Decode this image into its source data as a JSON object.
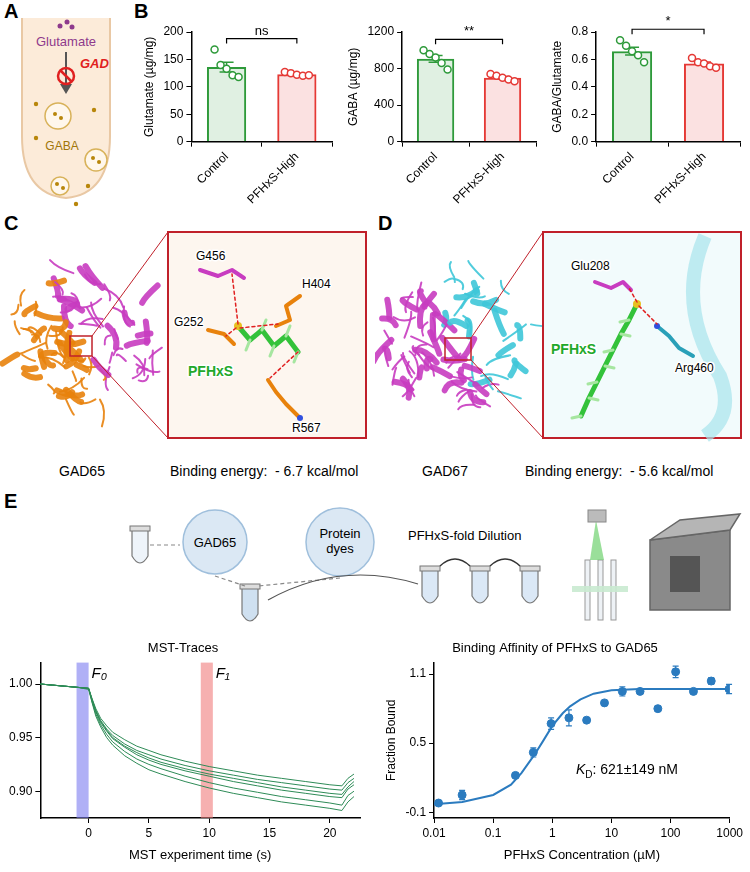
{
  "panel_letters": [
    "A",
    "B",
    "C",
    "D",
    "E"
  ],
  "diagrams": {
    "A": {
      "substrate": "Glutamate",
      "enzyme": "GAD",
      "product": "GABA"
    },
    "C": {
      "protein": "GAD65",
      "residues": [
        "G456",
        "H404",
        "G252",
        "R567"
      ],
      "ligand": "PFHxS",
      "binding_energy": "Binding energy:  - 6.7 kcal/mol"
    },
    "D": {
      "protein": "GAD67",
      "residues": [
        "Glu208",
        "Arg460"
      ],
      "ligand": "PFHxS",
      "binding_energy": "Binding energy:  - 5.6 kcal/mol"
    },
    "E": {
      "steps": [
        "GAD65",
        "Protein dyes",
        "PFHxS-fold Dilution"
      ]
    }
  },
  "chart_data": [
    {
      "type": "bar",
      "ylabel": "Glutamate (µg/mg)",
      "categories": [
        "Control",
        "PFHxS-High"
      ],
      "values": [
        136,
        123
      ],
      "errors": [
        8.9,
        1.3
      ],
      "points": [
        [
          168,
          140,
          133,
          121,
          118
        ],
        [
          127,
          125,
          122,
          120,
          121
        ]
      ],
      "colors": [
        "#2e9a3a",
        "#e53935"
      ],
      "significance": "ns",
      "ylim": [
        0,
        200
      ],
      "yticks": [
        0,
        50,
        100,
        150,
        200
      ],
      "grid": false
    },
    {
      "type": "bar",
      "ylabel": "GABA (µg/mg)",
      "categories": [
        "Control",
        "PFHxS-High"
      ],
      "values": [
        906,
        700
      ],
      "errors": [
        37,
        14
      ],
      "points": [
        [
          1000,
          960,
          920,
          860,
          790
        ],
        [
          740,
          720,
          700,
          680,
          660
        ]
      ],
      "colors": [
        "#2e9a3a",
        "#e53935"
      ],
      "significance": "**",
      "ylim": [
        0,
        1200
      ],
      "yticks": [
        0,
        400,
        800,
        1200
      ],
      "grid": false
    },
    {
      "type": "bar",
      "ylabel": "GABA/Glutamate",
      "categories": [
        "Control",
        "PFHxS-High"
      ],
      "values": [
        0.66,
        0.57
      ],
      "errors": [
        0.028,
        0.012
      ],
      "points": [
        [
          0.74,
          0.7,
          0.66,
          0.63,
          0.58
        ],
        [
          0.61,
          0.58,
          0.57,
          0.55,
          0.54
        ]
      ],
      "colors": [
        "#2e9a3a",
        "#e53935"
      ],
      "significance": "*",
      "ylim": [
        0,
        0.8
      ],
      "yticks": [
        {
          "value": 0,
          "label": "0.0"
        },
        0.2,
        0.4,
        0.6,
        0.8
      ],
      "grid": false
    },
    {
      "type": "line",
      "title": "MST-Traces",
      "xlabel": "MST experiment time (s)",
      "x": [
        -4,
        -3,
        -2,
        -1,
        0,
        0.3,
        0.6,
        1,
        1.5,
        2,
        3,
        4,
        5,
        6,
        8,
        10,
        12,
        14,
        16,
        18,
        20,
        21,
        21.5,
        22
      ],
      "series": [
        {
          "color": "#2e8b57",
          "values": [
            1.0,
            0.999,
            0.998,
            0.997,
            0.996,
            0.985,
            0.975,
            0.966,
            0.958,
            0.952,
            0.944,
            0.938,
            0.934,
            0.93,
            0.924,
            0.919,
            0.915,
            0.911,
            0.908,
            0.905,
            0.902,
            0.901,
            0.908,
            0.912
          ]
        },
        {
          "color": "#2e8b57",
          "values": [
            1.0,
            0.999,
            0.998,
            0.997,
            0.996,
            0.983,
            0.972,
            0.962,
            0.953,
            0.946,
            0.937,
            0.93,
            0.925,
            0.921,
            0.914,
            0.908,
            0.903,
            0.899,
            0.895,
            0.892,
            0.889,
            0.887,
            0.896,
            0.9
          ]
        },
        {
          "color": "#2e8b57",
          "values": [
            1.0,
            0.999,
            0.998,
            0.997,
            0.996,
            0.984,
            0.974,
            0.964,
            0.956,
            0.949,
            0.941,
            0.934,
            0.929,
            0.925,
            0.919,
            0.914,
            0.909,
            0.905,
            0.901,
            0.898,
            0.895,
            0.894,
            0.902,
            0.906
          ]
        },
        {
          "color": "#2e8b57",
          "values": [
            1.0,
            0.999,
            0.998,
            0.997,
            0.995,
            0.982,
            0.97,
            0.96,
            0.95,
            0.943,
            0.933,
            0.926,
            0.92,
            0.916,
            0.909,
            0.903,
            0.898,
            0.894,
            0.89,
            0.887,
            0.884,
            0.882,
            0.89,
            0.895
          ]
        },
        {
          "color": "#2e8b57",
          "values": [
            1.0,
            0.999,
            0.998,
            0.997,
            0.996,
            0.986,
            0.977,
            0.968,
            0.961,
            0.955,
            0.948,
            0.942,
            0.938,
            0.934,
            0.928,
            0.923,
            0.919,
            0.915,
            0.912,
            0.909,
            0.906,
            0.905,
            0.912,
            0.916
          ]
        },
        {
          "color": "#2e8b57",
          "values": [
            1.0,
            0.999,
            0.998,
            0.997,
            0.996,
            0.985,
            0.975,
            0.965,
            0.957,
            0.95,
            0.942,
            0.936,
            0.931,
            0.927,
            0.921,
            0.916,
            0.912,
            0.908,
            0.904,
            0.901,
            0.898,
            0.897,
            0.904,
            0.909
          ]
        }
      ],
      "regions": [
        {
          "label": "F₀",
          "xlim": [
            -1,
            0
          ],
          "color": "#7b7bf0"
        },
        {
          "label": "F₁",
          "xlim": [
            9.3,
            10.3
          ],
          "color": "#f07b7b"
        }
      ],
      "xlim": [
        -4,
        22.5
      ],
      "xticks": [
        0,
        5,
        10,
        15,
        20
      ],
      "ylim": [
        0.875,
        1.02
      ],
      "yticks": [
        {
          "value": 0.9,
          "label": "0.90"
        },
        {
          "value": 0.95,
          "label": "0.95"
        },
        {
          "value": 1,
          "label": "1.00"
        }
      ],
      "grid": false
    },
    {
      "type": "scatter",
      "title": "Binding Affinity of PFHxS to GAD65",
      "xlabel": "PFHxS Concentration (µM)",
      "ylabel": "Fraction Bound",
      "log": "x",
      "x": [
        0.0119,
        0.0298,
        0.238,
        0.477,
        0.954,
        1.91,
        3.81,
        7.63,
        15.3,
        30.5,
        61,
        122,
        244,
        488,
        977
      ],
      "values": [
        -0.02,
        0.05,
        0.22,
        0.42,
        0.67,
        0.72,
        0.7,
        0.85,
        0.95,
        0.95,
        0.8,
        1.12,
        0.95,
        1.04,
        0.97
      ],
      "errors": [
        0.02,
        0.04,
        0.02,
        0.04,
        0.05,
        0.07,
        0.02,
        0.02,
        0.04,
        0.01,
        0.02,
        0.05,
        0.02,
        0.03,
        0.04
      ],
      "color": "#2b7bbf",
      "fit": {
        "x": [
          0.01,
          0.03,
          0.1,
          0.2,
          0.3,
          0.5,
          0.7,
          1,
          1.5,
          2,
          3,
          5,
          10,
          30,
          100,
          1000
        ],
        "values": [
          -0.03,
          -0.01,
          0.05,
          0.14,
          0.24,
          0.4,
          0.52,
          0.65,
          0.76,
          0.82,
          0.88,
          0.93,
          0.96,
          0.97,
          0.97,
          0.97
        ]
      },
      "annotation": {
        "italic": "K",
        "subscript": "D",
        "text": ": 621±149 nM"
      },
      "xlim": [
        0.01,
        1000
      ],
      "xticks": [
        0.01,
        0.1,
        1,
        10,
        100,
        1000
      ],
      "ylim": [
        -0.15,
        1.2
      ],
      "yticks": [
        -0.1,
        0.5,
        1.1
      ],
      "grid": false
    }
  ]
}
